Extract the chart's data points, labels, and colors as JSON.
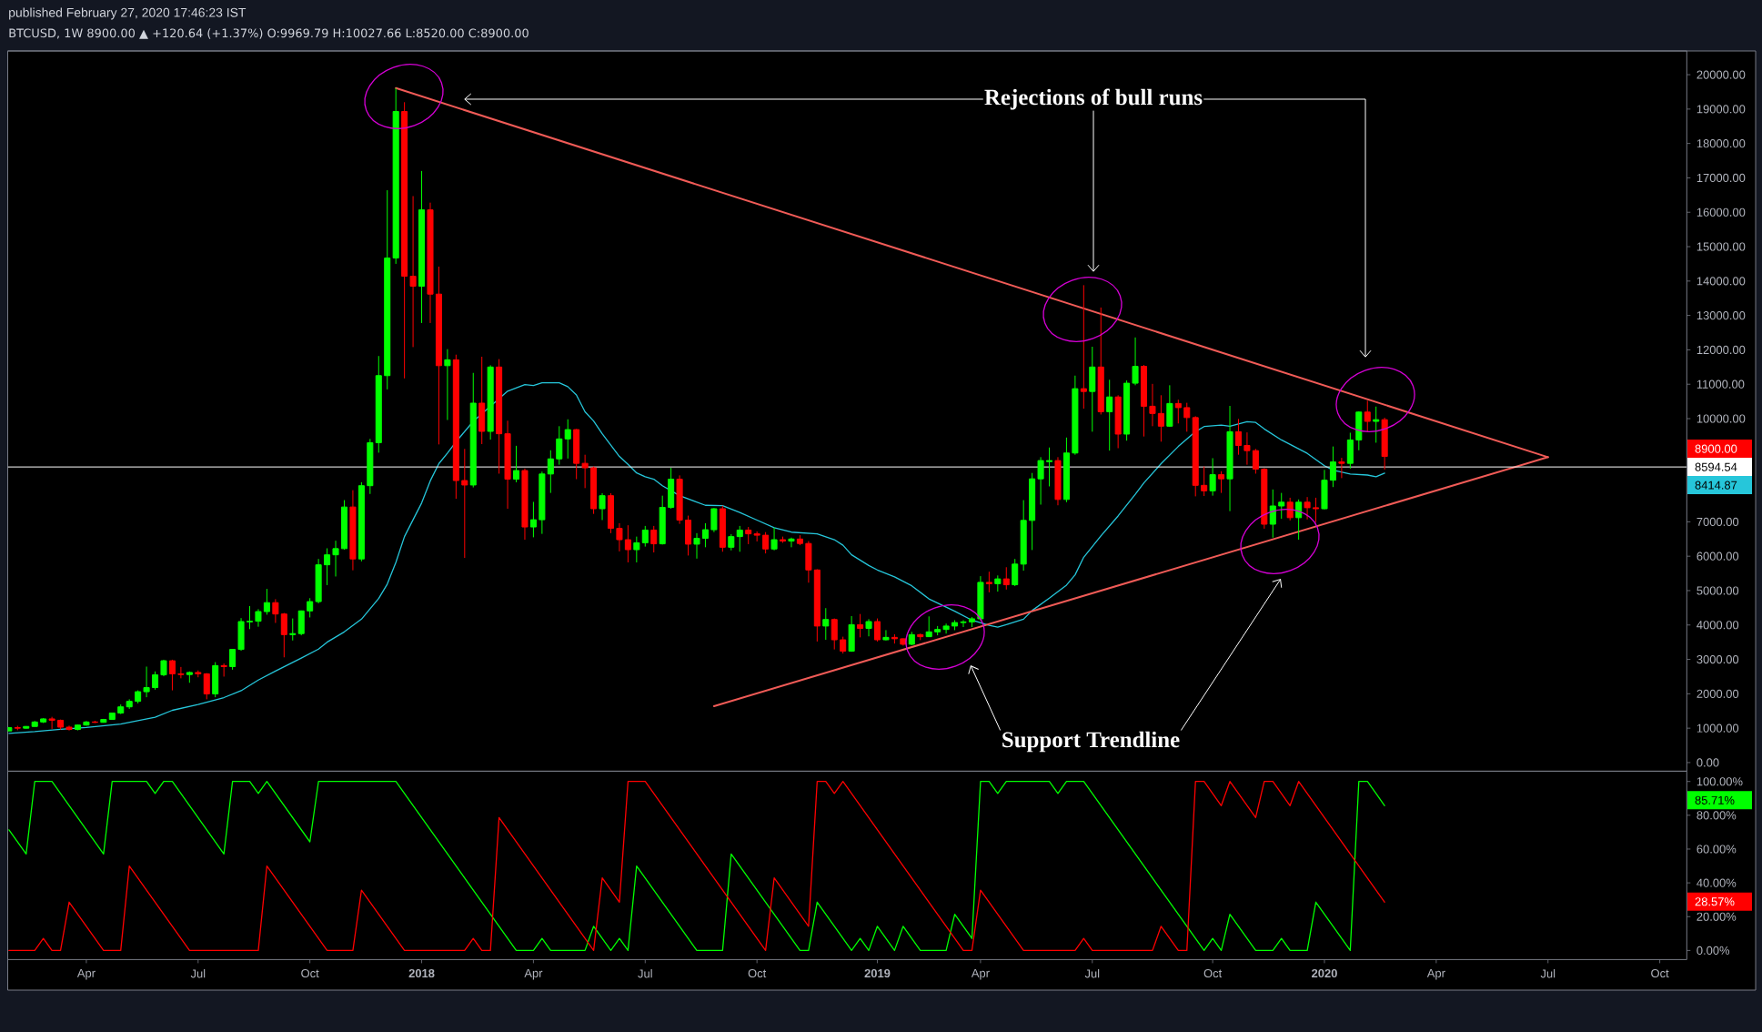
{
  "chart_data": [
    {
      "type": "candlestick",
      "title": "published February 27, 2020 17:46:23 IST",
      "subtitle": "BTCUSD, 1W 8900.00 ▲ +120.64 (+1.37%) O:9969.79 H:10027.66 L:8520.00 C:8900.00",
      "x": [
        "2017-01-30",
        "2017-02-06",
        "2017-02-13",
        "2017-02-20",
        "2017-02-27",
        "2017-03-06",
        "2017-03-13",
        "2017-03-20",
        "2017-03-27",
        "2017-04-03",
        "2017-04-10",
        "2017-04-17",
        "2017-04-24",
        "2017-05-01",
        "2017-05-08",
        "2017-05-15",
        "2017-05-22",
        "2017-05-29",
        "2017-06-05",
        "2017-06-12",
        "2017-06-19",
        "2017-06-26",
        "2017-07-03",
        "2017-07-10",
        "2017-07-17",
        "2017-07-24",
        "2017-07-31",
        "2017-08-07",
        "2017-08-14",
        "2017-08-21",
        "2017-08-28",
        "2017-09-04",
        "2017-09-11",
        "2017-09-18",
        "2017-09-25",
        "2017-10-02",
        "2017-10-09",
        "2017-10-16",
        "2017-10-23",
        "2017-10-30",
        "2017-11-06",
        "2017-11-13",
        "2017-11-20",
        "2017-11-27",
        "2017-12-04",
        "2017-12-11",
        "2017-12-18",
        "2017-12-25",
        "2018-01-01",
        "2018-01-08",
        "2018-01-15",
        "2018-01-22",
        "2018-01-29",
        "2018-02-05",
        "2018-02-12",
        "2018-02-19",
        "2018-02-26",
        "2018-03-05",
        "2018-03-12",
        "2018-03-19",
        "2018-03-26",
        "2018-04-02",
        "2018-04-09",
        "2018-04-16",
        "2018-04-23",
        "2018-04-30",
        "2018-05-07",
        "2018-05-14",
        "2018-05-21",
        "2018-05-28",
        "2018-06-04",
        "2018-06-11",
        "2018-06-18",
        "2018-06-25",
        "2018-07-02",
        "2018-07-09",
        "2018-07-16",
        "2018-07-23",
        "2018-07-30",
        "2018-08-06",
        "2018-08-13",
        "2018-08-20",
        "2018-08-27",
        "2018-09-03",
        "2018-09-10",
        "2018-09-17",
        "2018-09-24",
        "2018-10-01",
        "2018-10-08",
        "2018-10-15",
        "2018-10-22",
        "2018-10-29",
        "2018-11-05",
        "2018-11-12",
        "2018-11-19",
        "2018-11-26",
        "2018-12-03",
        "2018-12-10",
        "2018-12-17",
        "2018-12-24",
        "2018-12-31",
        "2019-01-07",
        "2019-01-14",
        "2019-01-21",
        "2019-01-28",
        "2019-02-04",
        "2019-02-11",
        "2019-02-18",
        "2019-02-25",
        "2019-03-04",
        "2019-03-11",
        "2019-03-18",
        "2019-03-25",
        "2019-04-01",
        "2019-04-08",
        "2019-04-15",
        "2019-04-22",
        "2019-04-29",
        "2019-05-06",
        "2019-05-13",
        "2019-05-20",
        "2019-05-27",
        "2019-06-03",
        "2019-06-10",
        "2019-06-17",
        "2019-06-24",
        "2019-07-01",
        "2019-07-08",
        "2019-07-15",
        "2019-07-22",
        "2019-07-29",
        "2019-08-05",
        "2019-08-12",
        "2019-08-19",
        "2019-08-26",
        "2019-09-02",
        "2019-09-09",
        "2019-09-16",
        "2019-09-23",
        "2019-09-30",
        "2019-10-07",
        "2019-10-14",
        "2019-10-21",
        "2019-10-28",
        "2019-11-04",
        "2019-11-11",
        "2019-11-18",
        "2019-11-25",
        "2019-12-02",
        "2019-12-09",
        "2019-12-16",
        "2019-12-23",
        "2019-12-30",
        "2020-01-06",
        "2020-01-13",
        "2020-01-20",
        "2020-01-27",
        "2020-02-03",
        "2020-02-10",
        "2020-02-17",
        "2020-02-24"
      ],
      "ohlc": [
        [
          920,
          1035,
          915,
          1015
        ],
        [
          1015,
          1070,
          940,
          1000
        ],
        [
          1000,
          1060,
          990,
          1050
        ],
        [
          1050,
          1210,
          1050,
          1180
        ],
        [
          1180,
          1290,
          1150,
          1270
        ],
        [
          1270,
          1330,
          980,
          1230
        ],
        [
          1230,
          1250,
          960,
          1030
        ],
        [
          1030,
          1075,
          930,
          965
        ],
        [
          965,
          1100,
          935,
          1090
        ],
        [
          1090,
          1210,
          1075,
          1180
        ],
        [
          1180,
          1215,
          1150,
          1170
        ],
        [
          1170,
          1270,
          1160,
          1255
        ],
        [
          1255,
          1450,
          1240,
          1440
        ],
        [
          1440,
          1690,
          1410,
          1620
        ],
        [
          1620,
          1840,
          1560,
          1780
        ],
        [
          1780,
          2100,
          1720,
          2060
        ],
        [
          2060,
          2790,
          1900,
          2180
        ],
        [
          2180,
          2650,
          2120,
          2550
        ],
        [
          2550,
          2990,
          2510,
          2960
        ],
        [
          2960,
          2990,
          2100,
          2580
        ],
        [
          2580,
          2780,
          2450,
          2560
        ],
        [
          2560,
          2650,
          2320,
          2620
        ],
        [
          2620,
          2680,
          2480,
          2580
        ],
        [
          2580,
          2600,
          1840,
          1995
        ],
        [
          1995,
          2920,
          1900,
          2820
        ],
        [
          2820,
          2880,
          2500,
          2790
        ],
        [
          2790,
          3300,
          2700,
          3290
        ],
        [
          3290,
          4200,
          3250,
          4100
        ],
        [
          4090,
          4550,
          3880,
          4110
        ],
        [
          4110,
          4460,
          3950,
          4390
        ],
        [
          4390,
          5050,
          4300,
          4650
        ],
        [
          4650,
          4750,
          4060,
          4320
        ],
        [
          4320,
          4350,
          3060,
          3720
        ],
        [
          3720,
          4190,
          3550,
          3750
        ],
        [
          3750,
          4420,
          3700,
          4410
        ],
        [
          4410,
          4780,
          4220,
          4680
        ],
        [
          4680,
          5920,
          4630,
          5750
        ],
        [
          5750,
          6230,
          5160,
          6040
        ],
        [
          6040,
          6450,
          5410,
          6220
        ],
        [
          6220,
          7630,
          6190,
          7430
        ],
        [
          7430,
          7920,
          5590,
          5920
        ],
        [
          5920,
          8150,
          5850,
          8050
        ],
        [
          8050,
          9410,
          7810,
          9300
        ],
        [
          9300,
          11820,
          9010,
          11250
        ],
        [
          11250,
          16640,
          10850,
          14670
        ],
        [
          14670,
          19610,
          14500,
          18930
        ],
        [
          18930,
          19200,
          11170,
          14140
        ],
        [
          14140,
          16470,
          12080,
          13850
        ],
        [
          13850,
          17200,
          12780,
          16070
        ],
        [
          16070,
          16280,
          12780,
          13620
        ],
        [
          13620,
          14420,
          9250,
          11540
        ],
        [
          11540,
          12020,
          9960,
          11710
        ],
        [
          11710,
          11860,
          7670,
          8200
        ],
        [
          8200,
          9120,
          5950,
          8070
        ],
        [
          8070,
          11330,
          8000,
          10450
        ],
        [
          10450,
          11800,
          9260,
          9630
        ],
        [
          9630,
          11550,
          9390,
          11500
        ],
        [
          11500,
          11730,
          8400,
          9560
        ],
        [
          9560,
          9940,
          7380,
          8240
        ],
        [
          8240,
          9210,
          8150,
          8490
        ],
        [
          8490,
          8550,
          6480,
          6850
        ],
        [
          6850,
          7580,
          6550,
          7060
        ],
        [
          7060,
          8460,
          6650,
          8390
        ],
        [
          8390,
          9080,
          7840,
          8830
        ],
        [
          8830,
          9780,
          8660,
          9410
        ],
        [
          9410,
          9980,
          8840,
          9680
        ],
        [
          9680,
          9700,
          8240,
          8700
        ],
        [
          8700,
          8950,
          7980,
          8570
        ],
        [
          8570,
          8610,
          7230,
          7380
        ],
        [
          7380,
          7830,
          7050,
          7760
        ],
        [
          7760,
          7830,
          6670,
          6810
        ],
        [
          6810,
          6960,
          6140,
          6480
        ],
        [
          6480,
          6900,
          5820,
          6190
        ],
        [
          6190,
          6570,
          5820,
          6390
        ],
        [
          6390,
          6880,
          6280,
          6760
        ],
        [
          6760,
          6880,
          6110,
          6360
        ],
        [
          6360,
          7760,
          6340,
          7420
        ],
        [
          7420,
          8570,
          7380,
          8240
        ],
        [
          8240,
          8350,
          6940,
          7050
        ],
        [
          7050,
          7180,
          6020,
          6350
        ],
        [
          6350,
          6670,
          5930,
          6520
        ],
        [
          6520,
          6960,
          6260,
          6770
        ],
        [
          6770,
          7400,
          6700,
          7380
        ],
        [
          7380,
          7470,
          6130,
          6260
        ],
        [
          6260,
          6640,
          6170,
          6570
        ],
        [
          6570,
          6880,
          6130,
          6760
        ],
        [
          6760,
          6850,
          6350,
          6650
        ],
        [
          6650,
          6720,
          6430,
          6610
        ],
        [
          6610,
          6700,
          6080,
          6210
        ],
        [
          6210,
          6830,
          6170,
          6480
        ],
        [
          6480,
          6570,
          6390,
          6440
        ],
        [
          6440,
          6540,
          6260,
          6500
        ],
        [
          6500,
          6610,
          6320,
          6370
        ],
        [
          6370,
          6440,
          5230,
          5600
        ],
        [
          5600,
          5620,
          3520,
          3970
        ],
        [
          3970,
          4490,
          3570,
          4160
        ],
        [
          4160,
          4190,
          3290,
          3570
        ],
        [
          3570,
          3660,
          3170,
          3240
        ],
        [
          3240,
          4260,
          3220,
          4010
        ],
        [
          4010,
          4320,
          3640,
          3900
        ],
        [
          3900,
          4170,
          3670,
          4100
        ],
        [
          4100,
          4190,
          3520,
          3570
        ],
        [
          3570,
          3850,
          3550,
          3640
        ],
        [
          3640,
          3730,
          3460,
          3600
        ],
        [
          3600,
          3610,
          3400,
          3440
        ],
        [
          3440,
          3800,
          3410,
          3720
        ],
        [
          3720,
          3750,
          3560,
          3660
        ],
        [
          3660,
          4250,
          3650,
          3800
        ],
        [
          3800,
          3970,
          3700,
          3870
        ],
        [
          3870,
          4040,
          3750,
          3970
        ],
        [
          3970,
          4140,
          3850,
          4070
        ],
        [
          4070,
          4140,
          3940,
          4090
        ],
        [
          4090,
          4230,
          3940,
          4180
        ],
        [
          4180,
          5420,
          4130,
          5240
        ],
        [
          5240,
          5550,
          4950,
          5200
        ],
        [
          5200,
          5440,
          4970,
          5340
        ],
        [
          5340,
          5680,
          5030,
          5170
        ],
        [
          5170,
          5920,
          5130,
          5770
        ],
        [
          5770,
          7630,
          5580,
          7040
        ],
        [
          7040,
          8420,
          6180,
          8250
        ],
        [
          8250,
          8880,
          7500,
          8780
        ],
        [
          8750,
          9160,
          8030,
          8780
        ],
        [
          8780,
          8880,
          7480,
          7650
        ],
        [
          7650,
          9450,
          7570,
          9000
        ],
        [
          9000,
          11250,
          8950,
          10870
        ],
        [
          10870,
          13880,
          10290,
          10790
        ],
        [
          10790,
          12090,
          9620,
          11500
        ],
        [
          11500,
          13230,
          10120,
          10200
        ],
        [
          10200,
          11130,
          9070,
          10630
        ],
        [
          10630,
          10680,
          9140,
          9550
        ],
        [
          9550,
          11110,
          9360,
          11030
        ],
        [
          11030,
          12360,
          10970,
          11520
        ],
        [
          11520,
          11560,
          9480,
          10360
        ],
        [
          10360,
          11010,
          9780,
          10150
        ],
        [
          10150,
          10680,
          9330,
          9780
        ],
        [
          9780,
          10970,
          9760,
          10440
        ],
        [
          10440,
          10550,
          9860,
          10320
        ],
        [
          10320,
          10460,
          9620,
          10030
        ],
        [
          10030,
          10070,
          7740,
          8060
        ],
        [
          8060,
          8610,
          7750,
          7900
        ],
        [
          7900,
          8850,
          7760,
          8370
        ],
        [
          8370,
          8470,
          7840,
          8250
        ],
        [
          8250,
          10370,
          7310,
          9620
        ],
        [
          9620,
          9990,
          8950,
          9220
        ],
        [
          9220,
          9600,
          8660,
          9070
        ],
        [
          9070,
          9120,
          8400,
          8530
        ],
        [
          8530,
          8560,
          6800,
          6930
        ],
        [
          6930,
          7940,
          6540,
          7460
        ],
        [
          7460,
          7840,
          7090,
          7570
        ],
        [
          7570,
          7700,
          7040,
          7120
        ],
        [
          7120,
          7650,
          6480,
          7570
        ],
        [
          7570,
          7720,
          7070,
          7410
        ],
        [
          7410,
          7700,
          6990,
          7380
        ],
        [
          7380,
          8510,
          7360,
          8210
        ],
        [
          8210,
          9190,
          8010,
          8740
        ],
        [
          8740,
          8860,
          8270,
          8700
        ],
        [
          8700,
          9590,
          8550,
          9380
        ],
        [
          9380,
          10210,
          9080,
          10190
        ],
        [
          10190,
          10520,
          9620,
          9920
        ],
        [
          9920,
          10350,
          9300,
          9970
        ],
        [
          9969.79,
          10027.66,
          8520.0,
          8900.0
        ]
      ],
      "colors": [
        "#00ff00",
        "#ff0000",
        "#00ff00",
        "#00ff00",
        "#00ff00",
        "#ff0000",
        "#ff0000",
        "#ff0000",
        "#00ff00",
        "#00ff00",
        "#ff0000",
        "#00ff00",
        "#00ff00",
        "#00ff00",
        "#00ff00",
        "#00ff00",
        "#00ff00",
        "#00ff00",
        "#00ff00",
        "#ff0000",
        "#ff0000",
        "#00ff00",
        "#ff0000",
        "#ff0000",
        "#00ff00",
        "#ff0000",
        "#00ff00",
        "#00ff00",
        "#00ff00",
        "#00ff00",
        "#00ff00",
        "#ff0000",
        "#ff0000",
        "#00ff00",
        "#00ff00",
        "#00ff00",
        "#00ff00",
        "#00ff00",
        "#00ff00",
        "#00ff00",
        "#ff0000",
        "#00ff00",
        "#00ff00",
        "#00ff00",
        "#00ff00",
        "#00ff00",
        "#ff0000",
        "#ff0000",
        "#00ff00",
        "#ff0000",
        "#ff0000",
        "#00ff00",
        "#ff0000",
        "#ff0000",
        "#00ff00",
        "#ff0000",
        "#00ff00",
        "#ff0000",
        "#ff0000",
        "#00ff00",
        "#ff0000",
        "#00ff00",
        "#00ff00",
        "#00ff00",
        "#00ff00",
        "#00ff00",
        "#ff0000",
        "#ff0000",
        "#ff0000",
        "#00ff00",
        "#ff0000",
        "#ff0000",
        "#ff0000",
        "#00ff00",
        "#00ff00",
        "#ff0000",
        "#00ff00",
        "#00ff00",
        "#ff0000",
        "#ff0000",
        "#00ff00",
        "#00ff00",
        "#00ff00",
        "#ff0000",
        "#00ff00",
        "#00ff00",
        "#ff0000",
        "#ff0000",
        "#ff0000",
        "#00ff00",
        "#ff0000",
        "#00ff00",
        "#ff0000",
        "#ff0000",
        "#ff0000",
        "#00ff00",
        "#ff0000",
        "#ff0000",
        "#00ff00",
        "#ff0000",
        "#00ff00",
        "#ff0000",
        "#00ff00",
        "#ff0000",
        "#ff0000",
        "#00ff00",
        "#ff0000",
        "#00ff00",
        "#00ff00",
        "#00ff00",
        "#00ff00",
        "#00ff00",
        "#00ff00",
        "#00ff00",
        "#ff0000",
        "#00ff00",
        "#ff0000",
        "#00ff00",
        "#00ff00",
        "#00ff00",
        "#00ff00",
        "#00ff00",
        "#ff0000",
        "#00ff00",
        "#00ff00",
        "#ff0000",
        "#00ff00",
        "#ff0000",
        "#00ff00",
        "#ff0000",
        "#00ff00",
        "#00ff00",
        "#ff0000",
        "#ff0000",
        "#ff0000",
        "#00ff00",
        "#ff0000",
        "#ff0000",
        "#ff0000",
        "#ff0000",
        "#00ff00",
        "#ff0000",
        "#00ff00",
        "#ff0000",
        "#ff0000",
        "#ff0000",
        "#ff0000",
        "#00ff00",
        "#00ff00",
        "#ff0000",
        "#00ff00",
        "#ff0000",
        "#ff0000",
        "#00ff00",
        "#00ff00",
        "#ff0000",
        "#00ff00",
        "#00ff00",
        "#ff0000",
        "#00ff00",
        "#ff0000"
      ],
      "series": [
        {
          "type": "line",
          "color": "#26c6da",
          "x": [
            "2017-01-30",
            "2017-02-20",
            "2017-03-13",
            "2017-04-03",
            "2017-05-01",
            "2017-05-29",
            "2017-06-12",
            "2017-07-03",
            "2017-07-24",
            "2017-08-07",
            "2017-08-21",
            "2017-09-04",
            "2017-09-25",
            "2017-10-09",
            "2017-10-16",
            "2017-10-30",
            "2017-11-13",
            "2017-11-27",
            "2017-12-04",
            "2017-12-11",
            "2017-12-18",
            "2017-12-25",
            "2018-01-01",
            "2018-01-08",
            "2018-01-15",
            "2018-01-22",
            "2018-01-29",
            "2018-02-12",
            "2018-02-26",
            "2018-03-12",
            "2018-03-26",
            "2018-04-02",
            "2018-04-09",
            "2018-04-23",
            "2018-04-30",
            "2018-05-07",
            "2018-05-14",
            "2018-05-21",
            "2018-05-28",
            "2018-06-11",
            "2018-06-18",
            "2018-06-25",
            "2018-07-02",
            "2018-07-09",
            "2018-07-16",
            "2018-07-30",
            "2018-08-20",
            "2018-09-03",
            "2018-09-17",
            "2018-10-01",
            "2018-10-15",
            "2018-10-29",
            "2018-11-19",
            "2018-12-03",
            "2018-12-10",
            "2018-12-17",
            "2018-12-31",
            "2019-01-07",
            "2019-01-21",
            "2019-02-04",
            "2019-02-18",
            "2019-03-11",
            "2019-03-25",
            "2019-04-08",
            "2019-04-15",
            "2019-04-22",
            "2019-05-06",
            "2019-05-13",
            "2019-05-27",
            "2019-06-10",
            "2019-06-17",
            "2019-06-24",
            "2019-07-08",
            "2019-07-22",
            "2019-08-05",
            "2019-08-12",
            "2019-08-26",
            "2019-09-09",
            "2019-09-23",
            "2019-09-30",
            "2019-10-14",
            "2019-10-21",
            "2019-11-04",
            "2019-11-11",
            "2019-11-18",
            "2019-12-02",
            "2019-12-23",
            "2020-01-06",
            "2020-01-13",
            "2020-01-27",
            "2020-02-10",
            "2020-02-17",
            "2020-02-24"
          ],
          "values": [
            850,
            900,
            970,
            1020,
            1120,
            1320,
            1520,
            1690,
            1890,
            2090,
            2400,
            2660,
            3040,
            3300,
            3500,
            3800,
            4170,
            4770,
            5190,
            5820,
            6570,
            7060,
            7550,
            8190,
            8690,
            9000,
            9330,
            9920,
            10360,
            10800,
            10990,
            10960,
            11040,
            11040,
            10930,
            10690,
            10200,
            9930,
            9560,
            8900,
            8670,
            8420,
            8310,
            8240,
            8050,
            7760,
            7480,
            7470,
            7270,
            7050,
            6830,
            6700,
            6650,
            6480,
            6320,
            6040,
            5730,
            5600,
            5400,
            5140,
            4760,
            4400,
            4140,
            3990,
            3940,
            4010,
            4170,
            4420,
            4780,
            5160,
            5460,
            5970,
            6590,
            7170,
            7800,
            8130,
            8690,
            9190,
            9620,
            9770,
            9810,
            9780,
            9910,
            9890,
            9700,
            9380,
            8990,
            8630,
            8500,
            8390,
            8360,
            8310,
            8414.87
          ]
        },
        {
          "type": "line",
          "color": "#f15b57",
          "x": [
            "2017-12-11",
            "2020-07-06"
          ],
          "values": [
            19610,
            8880
          ]
        },
        {
          "type": "line",
          "color": "#f15b57",
          "x": [
            "2018-08-27",
            "2020-07-06"
          ],
          "values": [
            1640,
            8880
          ]
        }
      ],
      "xlim": [
        "2017-01-29",
        "2020-10-27"
      ],
      "ylim": [
        -250,
        20690
      ],
      "yticks": [
        {
          "value": 0,
          "label": "0.00"
        },
        {
          "value": 1000,
          "label": "1000.00"
        },
        {
          "value": 2000,
          "label": "2000.00"
        },
        {
          "value": 3000,
          "label": "3000.00"
        },
        {
          "value": 4000,
          "label": "4000.00"
        },
        {
          "value": 5000,
          "label": "5000.00"
        },
        {
          "value": 6000,
          "label": "6000.00"
        },
        {
          "value": 7000,
          "label": "7000.00"
        },
        {
          "value": 10000,
          "label": "10000.00"
        },
        {
          "value": 11000,
          "label": "11000.00"
        },
        {
          "value": 12000,
          "label": "12000.00"
        },
        {
          "value": 13000,
          "label": "13000.00"
        },
        {
          "value": 14000,
          "label": "14000.00"
        },
        {
          "value": 15000,
          "label": "15000.00"
        },
        {
          "value": 16000,
          "label": "16000.00"
        },
        {
          "value": 17000,
          "label": "17000.00"
        },
        {
          "value": 18000,
          "label": "18000.00"
        },
        {
          "value": 19000,
          "label": "19000.00"
        },
        {
          "value": 20000,
          "label": "20000.00"
        }
      ],
      "tick_labels": "y",
      "ref_lines": [
        {
          "axis": "y",
          "value": 8594.54,
          "label": "8594.54",
          "color": "#ffffff"
        }
      ],
      "annotations": [
        "Rejections of bull runs",
        "Support Trendline",
        "8900.00",
        "8414.87"
      ]
    },
    {
      "type": "line",
      "series": [
        {
          "color": "#00ff00",
          "x": [
            "2017-01-30",
            "2017-02-13",
            "2017-02-20",
            "2017-03-06",
            "2017-04-17",
            "2017-04-24",
            "2017-05-22",
            "2017-05-29",
            "2017-06-05",
            "2017-06-12",
            "2017-07-24",
            "2017-07-31",
            "2017-08-14",
            "2017-08-21",
            "2017-08-28",
            "2017-10-02",
            "2017-10-09",
            "2017-12-11",
            "2018-03-19",
            "2018-04-02",
            "2018-04-09",
            "2018-04-16",
            "2018-05-14",
            "2018-05-21",
            "2018-06-04",
            "2018-06-11",
            "2018-06-18",
            "2018-06-25",
            "2018-08-13",
            "2018-09-03",
            "2018-09-10",
            "2018-11-05",
            "2018-11-12",
            "2018-11-19",
            "2018-12-17",
            "2018-12-24",
            "2018-12-31",
            "2019-01-07",
            "2019-01-21",
            "2019-01-28",
            "2019-02-11",
            "2019-03-04",
            "2019-03-11",
            "2019-03-25",
            "2019-04-01",
            "2019-04-08",
            "2019-04-15",
            "2019-04-22",
            "2019-05-27",
            "2019-06-03",
            "2019-06-10",
            "2019-06-24",
            "2019-09-30",
            "2019-10-07",
            "2019-10-14",
            "2019-10-21",
            "2019-11-11",
            "2019-11-25",
            "2019-12-02",
            "2019-12-09",
            "2019-12-23",
            "2019-12-30",
            "2020-01-27",
            "2020-02-03",
            "2020-02-10",
            "2020-02-17",
            "2020-02-24"
          ],
          "values": [
            71.4,
            57.1,
            100,
            100,
            57.1,
            100,
            100,
            92.9,
            100,
            100,
            57.1,
            100,
            100,
            92.9,
            100,
            64.3,
            100,
            100,
            0,
            0,
            7.1,
            0,
            0,
            14.3,
            0,
            7.1,
            0,
            50,
            0,
            0,
            57.1,
            0,
            0,
            28.6,
            0,
            7.1,
            0,
            14.3,
            0,
            14.3,
            0,
            0,
            21.4,
            7.1,
            100,
            100,
            92.9,
            100,
            100,
            92.9,
            100,
            100,
            0,
            7.1,
            0,
            21.4,
            0,
            0,
            7.1,
            0,
            0,
            28.6,
            0,
            100,
            100,
            92.9,
            85.7
          ]
        },
        {
          "color": "#ff0000",
          "x": [
            "2017-01-30",
            "2017-02-20",
            "2017-02-27",
            "2017-03-06",
            "2017-03-13",
            "2017-03-20",
            "2017-04-17",
            "2017-05-01",
            "2017-05-08",
            "2017-06-26",
            "2017-08-21",
            "2017-08-28",
            "2017-10-16",
            "2017-11-06",
            "2017-11-13",
            "2017-12-18",
            "2018-02-05",
            "2018-02-12",
            "2018-02-19",
            "2018-02-26",
            "2018-03-05",
            "2018-05-21",
            "2018-05-28",
            "2018-06-11",
            "2018-06-18",
            "2018-07-02",
            "2018-10-08",
            "2018-10-15",
            "2018-11-12",
            "2018-11-19",
            "2018-11-26",
            "2018-12-03",
            "2018-12-10",
            "2019-03-18",
            "2019-03-25",
            "2019-04-01",
            "2019-05-06",
            "2019-06-17",
            "2019-06-24",
            "2019-07-01",
            "2019-08-19",
            "2019-08-26",
            "2019-09-09",
            "2019-09-16",
            "2019-09-23",
            "2019-09-30",
            "2019-10-14",
            "2019-10-21",
            "2019-11-11",
            "2019-11-18",
            "2019-11-25",
            "2019-12-09",
            "2019-12-16",
            "2020-02-24"
          ],
          "values": [
            0,
            0,
            7.1,
            0,
            0,
            28.6,
            0,
            0,
            50,
            0,
            0,
            50,
            0,
            0,
            35.7,
            0,
            0,
            7.1,
            0,
            0,
            78.6,
            0,
            42.9,
            28.6,
            100,
            100,
            0,
            42.9,
            14.3,
            100,
            100,
            92.9,
            100,
            0,
            0,
            35.7,
            0,
            0,
            7.1,
            0,
            0,
            14.3,
            0,
            0,
            100,
            100,
            85.7,
            100,
            78.6,
            100,
            100,
            85.7,
            100,
            28.6
          ]
        }
      ],
      "xlim": [
        "2017-01-29",
        "2020-10-27"
      ],
      "xticks": [
        {
          "value": "2017-04-03",
          "label": "Apr"
        },
        {
          "value": "2017-07-03",
          "label": "Jul"
        },
        {
          "value": "2017-10-02",
          "label": "Oct"
        },
        {
          "value": "2018-01-01",
          "label": "2018"
        },
        {
          "value": "2018-04-02",
          "label": "Apr"
        },
        {
          "value": "2018-07-02",
          "label": "Jul"
        },
        {
          "value": "2018-10-01",
          "label": "Oct"
        },
        {
          "value": "2019-01-07",
          "label": "2019"
        },
        {
          "value": "2019-04-01",
          "label": "Apr"
        },
        {
          "value": "2019-07-01",
          "label": "Jul"
        },
        {
          "value": "2019-10-07",
          "label": "Oct"
        },
        {
          "value": "2020-01-06",
          "label": "2020"
        },
        {
          "value": "2020-04-06",
          "label": "Apr"
        },
        {
          "value": "2020-07-06",
          "label": "Jul"
        },
        {
          "value": "2020-10-05",
          "label": "Oct"
        }
      ],
      "ylim": [
        -5.4,
        106.1
      ],
      "yticks": [
        {
          "value": 0,
          "label": "0.00%"
        },
        {
          "value": 20,
          "label": "20.00%"
        },
        {
          "value": 40,
          "label": "40.00%"
        },
        {
          "value": 60,
          "label": "60.00%"
        },
        {
          "value": 80,
          "label": "80.00%"
        },
        {
          "value": 100,
          "label": "100.00%"
        }
      ],
      "annotations": [
        "85.71%",
        "28.57%"
      ]
    }
  ]
}
